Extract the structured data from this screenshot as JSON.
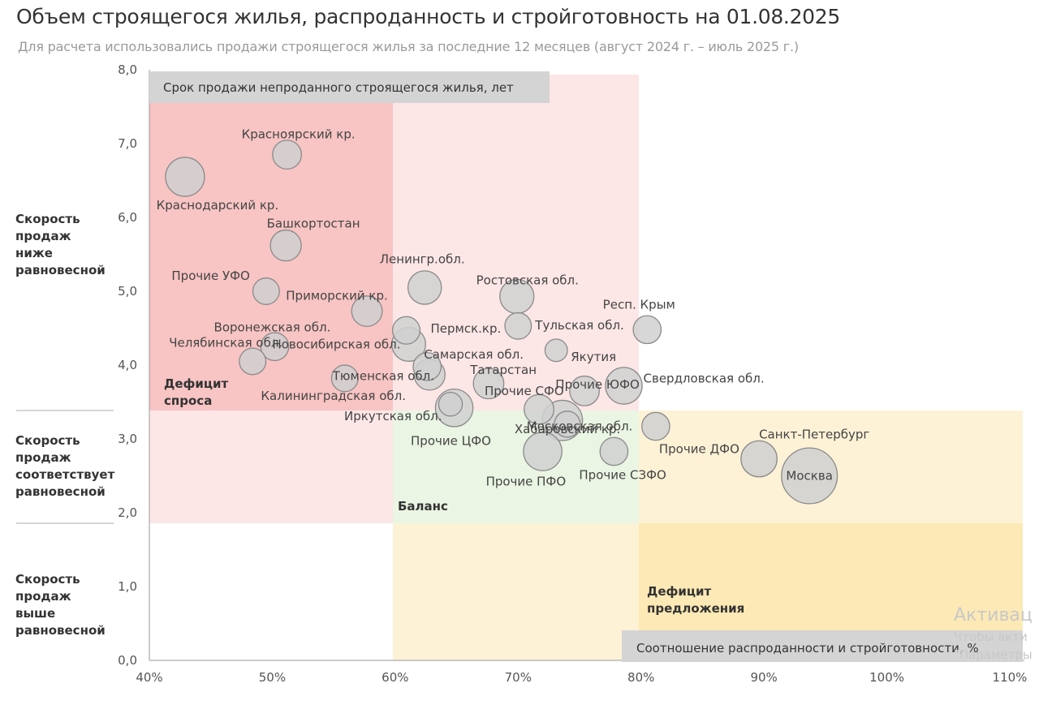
{
  "page_title": "Объем строящегося жилья, распроданность и стройготовность на 01.08.2025",
  "page_subtitle": "Для расчета использовались продажи строящегося жилья за последние 12 месяцев (август 2024 г. – июль 2025 г.)",
  "side_labels": {
    "low": [
      "Скорость",
      "продаж",
      "ниже",
      "равновесной"
    ],
    "eq": [
      "Скорость",
      "продаж",
      "соответствует",
      "равновесной"
    ],
    "high": [
      "Скорость",
      "продаж",
      "выше",
      "равновесной"
    ]
  },
  "watermark": {
    "line1": "Активац",
    "line2": "Чтобы акти",
    "line3": "\"Параметры"
  },
  "colors": {
    "deficit_demand_dark": "#f8c4c4",
    "deficit_demand_light": "#fde6e6",
    "balance": "#eaf5e3",
    "deficit_supply_light": "#fdf2d6",
    "deficit_supply_dark": "#fde9b5",
    "bubble_fill": "#d0d0d0",
    "bubble_stroke": "#8a8a8a",
    "label_box": "#d4d4d4"
  },
  "chart_data": {
    "type": "scatter",
    "ylabel": "Срок продажи непроданного строящегося жилья, лет",
    "xlabel": "Соотношение распроданности и стройготовности, %",
    "xlim": [
      40,
      110
    ],
    "ylim": [
      0,
      8
    ],
    "x_ticks": [
      "40%",
      "50%",
      "60%",
      "70%",
      "80%",
      "90%",
      "100%",
      "110%"
    ],
    "y_ticks": [
      "0,0",
      "1,0",
      "2,0",
      "3,0",
      "4,0",
      "5,0",
      "6,0",
      "7,0",
      "8,0"
    ],
    "zones": [
      {
        "name": "Дефицит спроса",
        "label": [
          "Дефицит",
          "спроса"
        ]
      },
      {
        "name": "Баланс",
        "label": [
          "Баланс"
        ]
      },
      {
        "name": "Дефицит предложения",
        "label": [
          "Дефицит",
          "предложения"
        ]
      }
    ],
    "points": [
      {
        "name": "Красноярский кр.",
        "x": 51.2,
        "y": 6.85,
        "size": 2
      },
      {
        "name": "Краснодарский кр.",
        "x": 42.9,
        "y": 6.55,
        "size": 5
      },
      {
        "name": "Башкортостан",
        "x": 51.1,
        "y": 5.62,
        "size": 2.5
      },
      {
        "name": "Прочие УФО",
        "x": 49.5,
        "y": 5.0,
        "size": 1.5
      },
      {
        "name": "Приморский кр.",
        "x": 57.7,
        "y": 4.73,
        "size": 2.4
      },
      {
        "name": "Ленингр.обл.",
        "x": 62.4,
        "y": 5.05,
        "size": 3.2
      },
      {
        "name": "Ростовская обл.",
        "x": 69.9,
        "y": 4.93,
        "size": 3.4
      },
      {
        "name": "Воронежская обл.",
        "x": 50.2,
        "y": 4.25,
        "size": 1.8
      },
      {
        "name": "Челябинская обл.",
        "x": 48.4,
        "y": 4.05,
        "size": 1.5
      },
      {
        "name": "Новосибирская обл.",
        "x": 61.1,
        "y": 4.28,
        "size": 3.3
      },
      {
        "name": "Пермск.кр.",
        "x": 60.9,
        "y": 4.47,
        "size": 1.7
      },
      {
        "name": "Тульская обл.",
        "x": 70.0,
        "y": 4.53,
        "size": 1.5
      },
      {
        "name": "Респ. Крым",
        "x": 80.5,
        "y": 4.48,
        "size": 1.8
      },
      {
        "name": "Самарская обл.",
        "x": 62.6,
        "y": 3.98,
        "size": 1.8
      },
      {
        "name": "Якутия",
        "x": 73.1,
        "y": 4.2,
        "size": 0.8
      },
      {
        "name": "Тюменская обл.",
        "x": 55.9,
        "y": 3.82,
        "size": 1.5
      },
      {
        "name": "Татарстан",
        "x": 62.8,
        "y": 3.87,
        "size": 2.5
      },
      {
        "name": "Прочие ЮФО",
        "x": 75.4,
        "y": 3.65,
        "size": 2.2
      },
      {
        "name": "Свердловская обл.",
        "x": 78.6,
        "y": 3.72,
        "size": 4.2
      },
      {
        "name": "Прочие СФО",
        "x": 67.6,
        "y": 3.75,
        "size": 2.4
      },
      {
        "name": "Калининградская обл.",
        "x": 64.5,
        "y": 3.47,
        "size": 1
      },
      {
        "name": "Иркутская обл.",
        "x": 64.8,
        "y": 3.42,
        "size": 4.5
      },
      {
        "name": "Московская обл.",
        "x": 73.6,
        "y": 3.25,
        "size": 5.5
      },
      {
        "name": "Прочие ЦФО",
        "x": 71.7,
        "y": 3.4,
        "size": 2.2
      },
      {
        "name": "Хабаровский кр.",
        "x": 74.0,
        "y": 3.2,
        "size": 1.4
      },
      {
        "name": "Прочие ДФО",
        "x": 81.2,
        "y": 3.17,
        "size": 1.8
      },
      {
        "name": "Прочие ПФО",
        "x": 72.0,
        "y": 2.83,
        "size": 4.8
      },
      {
        "name": "Прочие СЗФО",
        "x": 77.8,
        "y": 2.83,
        "size": 1.8
      },
      {
        "name": "Санкт-Петербург",
        "x": 89.6,
        "y": 2.73,
        "size": 4
      },
      {
        "name": "Москва",
        "x": 93.7,
        "y": 2.5,
        "size": 13
      }
    ]
  }
}
